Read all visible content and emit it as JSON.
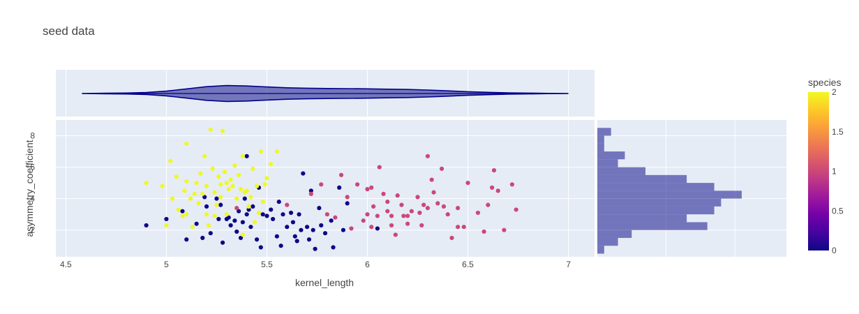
{
  "chart_data": {
    "type": "scatter",
    "title": "seed data",
    "xlabel": "kernel_length",
    "ylabel": "asymmetry_coefficient",
    "xlim": [
      4.45,
      7.13
    ],
    "ylim": [
      0.3,
      9.0
    ],
    "x_ticks": [
      "4.5",
      "5",
      "5.5",
      "6",
      "6.5",
      "7"
    ],
    "x_tick_values": [
      4.5,
      5,
      5.5,
      6,
      6.5,
      7
    ],
    "y_ticks": [
      "2",
      "4",
      "6",
      "8"
    ],
    "y_tick_values": [
      2,
      4,
      6,
      8
    ],
    "grid": true,
    "colorbar": {
      "title": "species",
      "range": [
        0,
        2
      ],
      "ticks": [
        "0",
        "0.5",
        "1",
        "1.5",
        "2"
      ],
      "tick_values": [
        0,
        0.5,
        1,
        1.5,
        2
      ],
      "colors": [
        "#0d0887",
        "#46039f",
        "#7201a8",
        "#9c179e",
        "#bd3786",
        "#d8576b",
        "#ed7953",
        "#fb9f3a",
        "#fdca26",
        "#f0f921"
      ]
    },
    "series": [
      {
        "species": 0,
        "color": "#0d0887",
        "points": [
          [
            4.9,
            2.3
          ],
          [
            5.0,
            2.7
          ],
          [
            5.08,
            3.2
          ],
          [
            5.1,
            1.4
          ],
          [
            5.15,
            2.4
          ],
          [
            5.18,
            1.5
          ],
          [
            5.2,
            3.5
          ],
          [
            5.22,
            1.8
          ],
          [
            5.25,
            4.0
          ],
          [
            5.26,
            2.7
          ],
          [
            5.28,
            1.2
          ],
          [
            5.3,
            2.7
          ],
          [
            5.32,
            2.3
          ],
          [
            5.34,
            2.6
          ],
          [
            5.35,
            1.9
          ],
          [
            5.36,
            3.2
          ],
          [
            5.37,
            1.5
          ],
          [
            5.38,
            2.5
          ],
          [
            5.39,
            4.0
          ],
          [
            5.4,
            6.7
          ],
          [
            5.4,
            3.0
          ],
          [
            5.41,
            3.3
          ],
          [
            5.42,
            2.2
          ],
          [
            5.43,
            3.5
          ],
          [
            5.45,
            1.4
          ],
          [
            5.47,
            0.9
          ],
          [
            5.48,
            3.0
          ],
          [
            5.5,
            2.9
          ],
          [
            5.52,
            3.3
          ],
          [
            5.53,
            2.7
          ],
          [
            5.55,
            1.6
          ],
          [
            5.56,
            3.8
          ],
          [
            5.57,
            1.0
          ],
          [
            5.58,
            3.0
          ],
          [
            5.6,
            2.2
          ],
          [
            5.62,
            3.1
          ],
          [
            5.63,
            2.5
          ],
          [
            5.65,
            1.3
          ],
          [
            5.66,
            3.0
          ],
          [
            5.67,
            2.0
          ],
          [
            5.68,
            5.6
          ],
          [
            5.7,
            2.2
          ],
          [
            5.71,
            1.4
          ],
          [
            5.72,
            4.5
          ],
          [
            5.73,
            2.0
          ],
          [
            5.74,
            0.8
          ],
          [
            5.76,
            3.4
          ],
          [
            5.77,
            2.3
          ],
          [
            5.79,
            1.8
          ],
          [
            5.82,
            2.6
          ],
          [
            5.83,
            0.9
          ],
          [
            5.86,
            4.7
          ],
          [
            5.88,
            2.0
          ],
          [
            5.9,
            3.7
          ],
          [
            6.05,
            2.1
          ],
          [
            5.31,
            2.8
          ],
          [
            5.46,
            4.7
          ],
          [
            5.64,
            1.6
          ],
          [
            5.19,
            4.1
          ],
          [
            5.27,
            3.6
          ]
        ]
      },
      {
        "species": 1,
        "color": "#cc4778",
        "points": [
          [
            5.35,
            3.4
          ],
          [
            5.6,
            3.6
          ],
          [
            5.72,
            4.3
          ],
          [
            5.77,
            4.9
          ],
          [
            5.8,
            3.0
          ],
          [
            5.84,
            2.8
          ],
          [
            5.87,
            5.5
          ],
          [
            5.9,
            4.1
          ],
          [
            5.92,
            2.1
          ],
          [
            5.95,
            4.9
          ],
          [
            5.98,
            2.6
          ],
          [
            6.0,
            4.6
          ],
          [
            6.0,
            3.0
          ],
          [
            6.02,
            4.7
          ],
          [
            6.03,
            3.5
          ],
          [
            6.05,
            2.9
          ],
          [
            6.06,
            6.0
          ],
          [
            6.08,
            4.3
          ],
          [
            6.1,
            3.8
          ],
          [
            6.12,
            2.3
          ],
          [
            6.14,
            1.7
          ],
          [
            6.15,
            4.2
          ],
          [
            6.17,
            3.6
          ],
          [
            6.18,
            2.9
          ],
          [
            6.2,
            2.4
          ],
          [
            6.22,
            3.2
          ],
          [
            6.25,
            4.1
          ],
          [
            6.27,
            2.3
          ],
          [
            6.28,
            3.6
          ],
          [
            6.3,
            3.4
          ],
          [
            6.3,
            6.7
          ],
          [
            6.32,
            5.2
          ],
          [
            6.33,
            4.4
          ],
          [
            6.35,
            3.7
          ],
          [
            6.37,
            5.9
          ],
          [
            6.38,
            3.5
          ],
          [
            6.4,
            3.0
          ],
          [
            6.42,
            1.5
          ],
          [
            6.45,
            2.2
          ],
          [
            6.48,
            2.2
          ],
          [
            6.5,
            5.0
          ],
          [
            6.55,
            3.1
          ],
          [
            6.58,
            1.9
          ],
          [
            6.6,
            3.6
          ],
          [
            6.62,
            4.7
          ],
          [
            6.63,
            5.8
          ],
          [
            6.65,
            4.5
          ],
          [
            6.68,
            2.0
          ],
          [
            6.72,
            4.9
          ],
          [
            6.74,
            3.3
          ],
          [
            6.2,
            2.9
          ],
          [
            6.1,
            3.2
          ],
          [
            6.02,
            2.2
          ],
          [
            6.12,
            2.9
          ],
          [
            6.26,
            3.1
          ],
          [
            6.45,
            3.4
          ]
        ]
      },
      {
        "species": 2,
        "color": "#f0f921",
        "points": [
          [
            4.9,
            5.0
          ],
          [
            4.98,
            4.8
          ],
          [
            5.0,
            2.3
          ],
          [
            5.02,
            6.4
          ],
          [
            5.03,
            4.0
          ],
          [
            5.05,
            5.4
          ],
          [
            5.06,
            3.3
          ],
          [
            5.08,
            2.9
          ],
          [
            5.09,
            4.5
          ],
          [
            5.1,
            7.5
          ],
          [
            5.1,
            3.0
          ],
          [
            5.1,
            5.1
          ],
          [
            5.12,
            4.0
          ],
          [
            5.13,
            2.2
          ],
          [
            5.15,
            5.0
          ],
          [
            5.16,
            3.7
          ],
          [
            5.17,
            5.6
          ],
          [
            5.18,
            4.3
          ],
          [
            5.19,
            6.7
          ],
          [
            5.2,
            3.0
          ],
          [
            5.2,
            4.8
          ],
          [
            5.21,
            2.3
          ],
          [
            5.22,
            8.4
          ],
          [
            5.23,
            5.9
          ],
          [
            5.24,
            4.4
          ],
          [
            5.25,
            3.6
          ],
          [
            5.26,
            5.4
          ],
          [
            5.27,
            4.1
          ],
          [
            5.28,
            8.3
          ],
          [
            5.29,
            5.7
          ],
          [
            5.3,
            3.0
          ],
          [
            5.3,
            5.0
          ],
          [
            5.31,
            4.6
          ],
          [
            5.32,
            5.2
          ],
          [
            5.33,
            4.8
          ],
          [
            5.34,
            6.1
          ],
          [
            5.35,
            4.0
          ],
          [
            5.36,
            5.5
          ],
          [
            5.37,
            4.6
          ],
          [
            5.38,
            6.7
          ],
          [
            5.39,
            4.4
          ],
          [
            5.4,
            4.5
          ],
          [
            5.41,
            3.5
          ],
          [
            5.42,
            4.1
          ],
          [
            5.43,
            5.9
          ],
          [
            5.44,
            2.5
          ],
          [
            5.45,
            4.8
          ],
          [
            5.46,
            3.1
          ],
          [
            5.47,
            7.0
          ],
          [
            5.48,
            3.8
          ],
          [
            5.49,
            4.9
          ],
          [
            5.5,
            5.3
          ],
          [
            5.52,
            6.2
          ],
          [
            5.55,
            7.0
          ],
          [
            5.38,
            1.7
          ],
          [
            5.27,
            4.9
          ],
          [
            5.14,
            4.3
          ],
          [
            5.24,
            2.9
          ]
        ]
      }
    ],
    "violin": {
      "min": 4.58,
      "max": 7.0,
      "fill_color": "rgba(32,32,144,0.58)",
      "line_color": "#00008b",
      "density": [
        [
          4.58,
          0.0
        ],
        [
          4.7,
          0.03
        ],
        [
          4.8,
          0.06
        ],
        [
          4.9,
          0.12
        ],
        [
          5.0,
          0.28
        ],
        [
          5.1,
          0.55
        ],
        [
          5.2,
          0.82
        ],
        [
          5.3,
          0.95
        ],
        [
          5.4,
          0.9
        ],
        [
          5.5,
          0.78
        ],
        [
          5.6,
          0.68
        ],
        [
          5.7,
          0.63
        ],
        [
          5.8,
          0.6
        ],
        [
          5.9,
          0.58
        ],
        [
          6.0,
          0.56
        ],
        [
          6.1,
          0.52
        ],
        [
          6.2,
          0.48
        ],
        [
          6.3,
          0.42
        ],
        [
          6.4,
          0.32
        ],
        [
          6.5,
          0.22
        ],
        [
          6.6,
          0.14
        ],
        [
          6.7,
          0.08
        ],
        [
          6.8,
          0.05
        ],
        [
          6.9,
          0.02
        ],
        [
          7.0,
          0.0
        ]
      ]
    },
    "histogram": {
      "color": "rgba(60,60,160,0.68)",
      "bins": [
        [
          0.5,
          1.0,
          1
        ],
        [
          1.0,
          1.5,
          3
        ],
        [
          1.5,
          2.0,
          5
        ],
        [
          2.0,
          2.5,
          16
        ],
        [
          2.5,
          3.0,
          13
        ],
        [
          3.0,
          3.5,
          17
        ],
        [
          3.5,
          4.0,
          18
        ],
        [
          4.0,
          4.5,
          21
        ],
        [
          4.5,
          5.0,
          17
        ],
        [
          5.0,
          5.5,
          13
        ],
        [
          5.5,
          6.0,
          7
        ],
        [
          6.0,
          6.5,
          3
        ],
        [
          6.5,
          7.0,
          4
        ],
        [
          7.0,
          7.5,
          1
        ],
        [
          7.5,
          8.0,
          1
        ],
        [
          8.0,
          8.5,
          2
        ]
      ],
      "grid_counts": [
        10,
        20
      ]
    }
  }
}
